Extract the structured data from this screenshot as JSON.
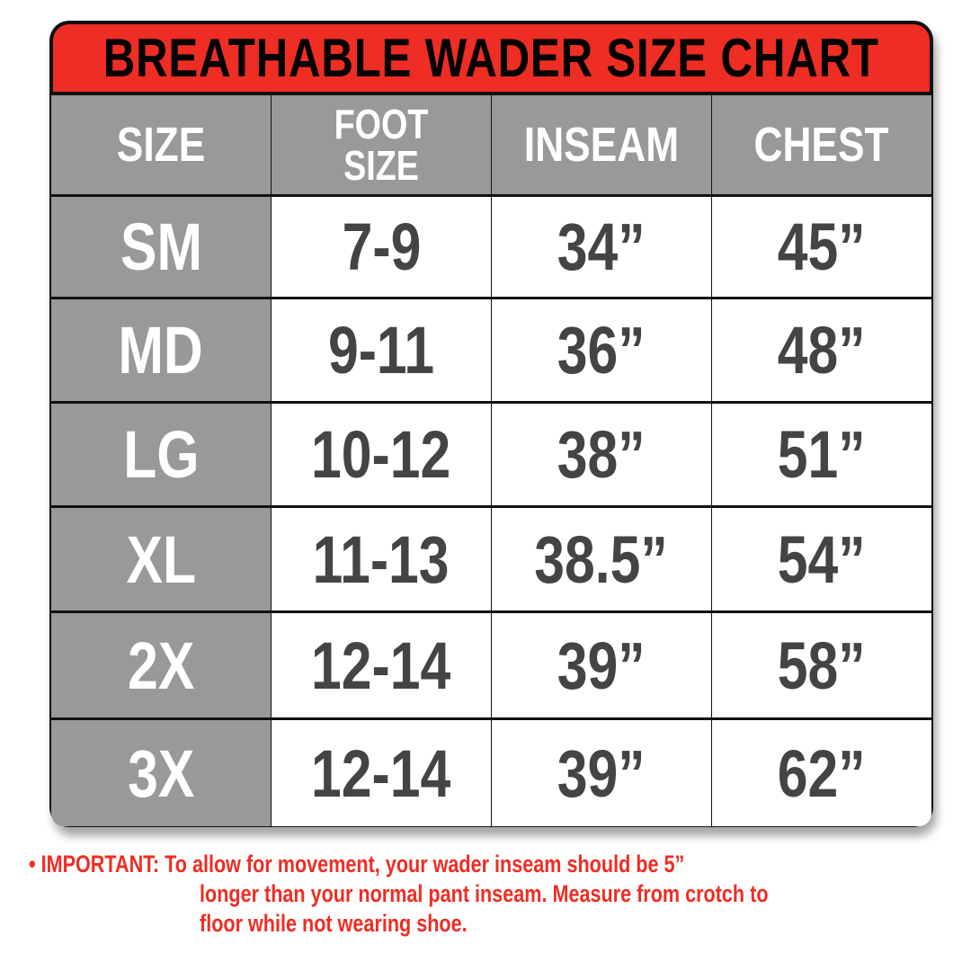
{
  "title": "BREATHABLE WADER SIZE CHART",
  "headers": [
    "SIZE",
    "FOOT SIZE",
    "INSEAM",
    "CHEST"
  ],
  "rows": [
    {
      "size": "SM",
      "foot": "7-9",
      "inseam": "34”",
      "chest": "45”"
    },
    {
      "size": "MD",
      "foot": "9-11",
      "inseam": "36”",
      "chest": "48”"
    },
    {
      "size": "LG",
      "foot": "10-12",
      "inseam": "38”",
      "chest": "51”"
    },
    {
      "size": "XL",
      "foot": "11-13",
      "inseam": "38.5”",
      "chest": "54”"
    },
    {
      "size": "2X",
      "foot": "12-14",
      "inseam": "39”",
      "chest": "58”"
    },
    {
      "size": "3X",
      "foot": "12-14",
      "inseam": "39”",
      "chest": "62”"
    }
  ],
  "note": {
    "bullet": "•",
    "label": "IMPORTANT:",
    "line1": "To allow for movement, your wader inseam should be 5”",
    "line2": "longer than your normal pant inseam. Measure from crotch to",
    "line3": "floor while not wearing shoe."
  },
  "colors": {
    "accent": "#ee2d24",
    "header_gray": "#9a9999",
    "value_text": "#444444"
  }
}
